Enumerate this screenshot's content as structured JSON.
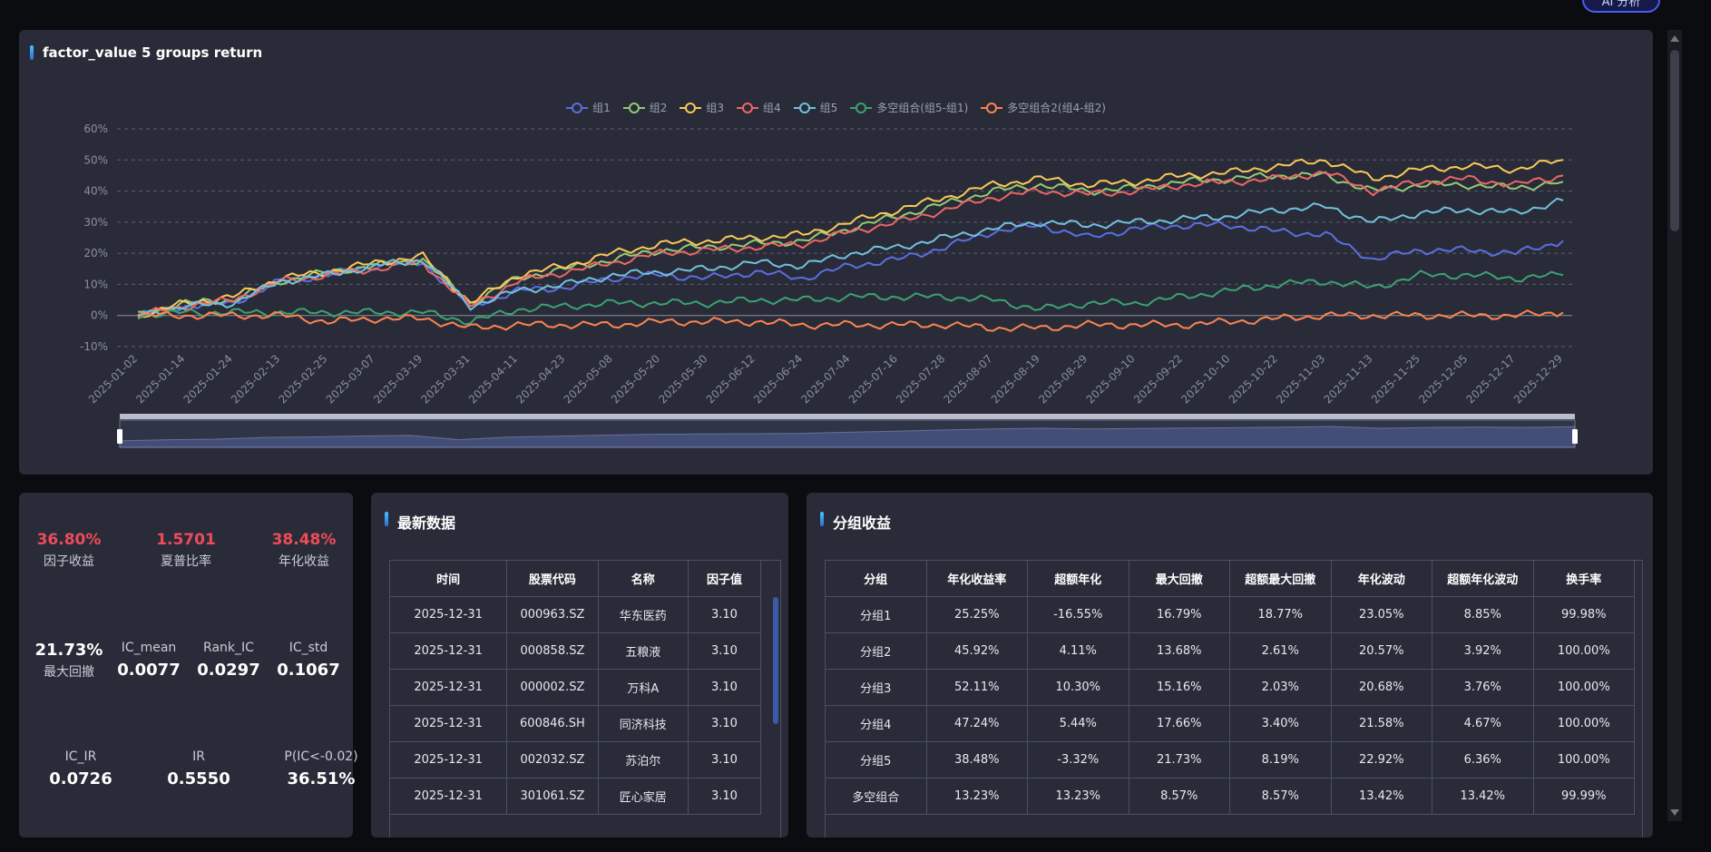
{
  "ai_button": {
    "label": "AI 分析"
  },
  "chart_panel": {
    "title": "factor_value 5 groups return"
  },
  "chart_data": {
    "type": "line",
    "title": "factor_value 5 groups return",
    "y_ticks": [
      "60%",
      "50%",
      "40%",
      "30%",
      "20%",
      "10%",
      "0%",
      "-10%"
    ],
    "ylim": [
      -10,
      60
    ],
    "x_ticks": [
      "2025-01-02",
      "2025-01-14",
      "2025-01-24",
      "2025-02-13",
      "2025-02-25",
      "2025-03-07",
      "2025-03-19",
      "2025-03-31",
      "2025-04-11",
      "2025-04-23",
      "2025-05-08",
      "2025-05-20",
      "2025-05-30",
      "2025-06-12",
      "2025-06-24",
      "2025-07-04",
      "2025-07-16",
      "2025-07-28",
      "2025-08-07",
      "2025-08-19",
      "2025-08-29",
      "2025-09-10",
      "2025-09-22",
      "2025-10-10",
      "2025-10-22",
      "2025-11-03",
      "2025-11-13",
      "2025-11-25",
      "2025-12-05",
      "2025-12-17",
      "2025-12-29"
    ],
    "legend_position": "top-center",
    "grid": true,
    "series": [
      {
        "name": "组1",
        "color": "#5b6ee1",
        "values": [
          0,
          3,
          4,
          11,
          13,
          16,
          17,
          3,
          8,
          9,
          12,
          13,
          12,
          14,
          12,
          16,
          18,
          22,
          27,
          29,
          25,
          28,
          29,
          29,
          27,
          26,
          18,
          21,
          21,
          20,
          24
        ]
      },
      {
        "name": "组2",
        "color": "#91cc75",
        "values": [
          0,
          4,
          5,
          11,
          14,
          16,
          18,
          4,
          12,
          15,
          18,
          21,
          22,
          23,
          24,
          28,
          32,
          36,
          40,
          42,
          40,
          41,
          43,
          44,
          45,
          45,
          40,
          42,
          42,
          41,
          43
        ]
      },
      {
        "name": "组3",
        "color": "#fac858",
        "values": [
          0,
          4,
          6,
          12,
          14,
          17,
          19,
          4,
          13,
          16,
          20,
          23,
          24,
          25,
          26,
          30,
          34,
          38,
          42,
          44,
          42,
          43,
          45,
          46,
          48,
          50,
          44,
          47,
          48,
          47,
          50
        ]
      },
      {
        "name": "组4",
        "color": "#ee6666",
        "values": [
          0,
          3,
          5,
          11,
          13,
          15,
          17,
          3,
          11,
          14,
          17,
          20,
          21,
          22,
          23,
          27,
          30,
          34,
          38,
          40,
          39,
          40,
          42,
          43,
          44,
          46,
          40,
          43,
          44,
          42,
          45
        ]
      },
      {
        "name": "组5",
        "color": "#73c0de",
        "values": [
          0,
          3,
          4,
          11,
          13,
          16,
          18,
          3,
          8,
          10,
          13,
          14,
          15,
          17,
          16,
          20,
          22,
          25,
          28,
          30,
          29,
          30,
          31,
          32,
          34,
          35,
          30,
          33,
          34,
          33,
          37
        ]
      },
      {
        "name": "多空组合(组5-组1)",
        "color": "#3ba272",
        "values": [
          0,
          1,
          1,
          1,
          1,
          1,
          1,
          -2,
          2,
          3,
          4,
          4,
          4,
          5,
          5,
          6,
          6,
          6,
          5,
          2,
          4,
          4,
          6,
          8,
          10,
          11,
          9,
          13,
          13,
          12,
          13
        ]
      },
      {
        "name": "多空组合2(组4-组2)",
        "color": "#fc8452",
        "values": [
          0,
          0,
          0,
          0,
          -2,
          -1,
          -1,
          -4,
          -3,
          -3,
          -3,
          -2,
          -2,
          -2,
          -3,
          -3,
          -3,
          -3,
          -4,
          -4,
          -3,
          -3,
          -3,
          -2,
          -1,
          0,
          0,
          0,
          0,
          0,
          1
        ]
      }
    ]
  },
  "summary": {
    "factor_return": {
      "value": "36.80%",
      "label": "因子收益"
    },
    "sharpe": {
      "value": "1.5701",
      "label": "夏普比率"
    },
    "annual_return": {
      "value": "38.48%",
      "label": "年化收益"
    },
    "max_drawdown": {
      "value": "21.73%",
      "label": "最大回撤"
    },
    "ic_mean": {
      "label": "IC_mean",
      "value": "0.0077"
    },
    "rank_ic": {
      "label": "Rank_IC",
      "value": "0.0297"
    },
    "ic_std": {
      "label": "IC_std",
      "value": "0.1067"
    },
    "ic_ir": {
      "label": "IC_IR",
      "value": "0.0726"
    },
    "ir": {
      "label": "IR",
      "value": "0.5550"
    },
    "p_ic": {
      "label": "P(IC<-0.02)",
      "value": "36.51%"
    }
  },
  "latest": {
    "title": "最新数据",
    "headers": [
      "时间",
      "股票代码",
      "名称",
      "因子值"
    ],
    "rows": [
      [
        "2025-12-31",
        "000963.SZ",
        "华东医药",
        "3.10"
      ],
      [
        "2025-12-31",
        "000858.SZ",
        "五粮液",
        "3.10"
      ],
      [
        "2025-12-31",
        "000002.SZ",
        "万科A",
        "3.10"
      ],
      [
        "2025-12-31",
        "600846.SH",
        "同济科技",
        "3.10"
      ],
      [
        "2025-12-31",
        "002032.SZ",
        "苏泊尔",
        "3.10"
      ],
      [
        "2025-12-31",
        "301061.SZ",
        "匠心家居",
        "3.10"
      ]
    ]
  },
  "group_returns": {
    "title": "分组收益",
    "headers": [
      "分组",
      "年化收益率",
      "超额年化",
      "最大回撤",
      "超额最大回撤",
      "年化波动",
      "超额年化波动",
      "换手率"
    ],
    "rows": [
      [
        "分组1",
        "25.25%",
        "-16.55%",
        "16.79%",
        "18.77%",
        "23.05%",
        "8.85%",
        "99.98%"
      ],
      [
        "分组2",
        "45.92%",
        "4.11%",
        "13.68%",
        "2.61%",
        "20.57%",
        "3.92%",
        "100.00%"
      ],
      [
        "分组3",
        "52.11%",
        "10.30%",
        "15.16%",
        "2.03%",
        "20.68%",
        "3.76%",
        "100.00%"
      ],
      [
        "分组4",
        "47.24%",
        "5.44%",
        "17.66%",
        "3.40%",
        "21.58%",
        "4.67%",
        "100.00%"
      ],
      [
        "分组5",
        "38.48%",
        "-3.32%",
        "21.73%",
        "8.19%",
        "22.92%",
        "6.36%",
        "100.00%"
      ],
      [
        "多空组合",
        "13.23%",
        "13.23%",
        "8.57%",
        "8.57%",
        "13.42%",
        "13.42%",
        "99.99%"
      ]
    ]
  }
}
